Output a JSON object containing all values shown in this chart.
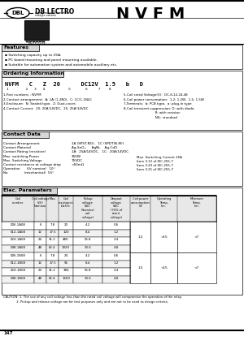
{
  "title": "N V F M",
  "logo_text": "DB LECTRO",
  "logo_sub1": "compact automotive",
  "logo_sub2": "relays series",
  "model_dims": "29x15.5x26",
  "features_title": "Features",
  "features": [
    "Switching capacity up to 25A.",
    "PC board mounting and panel mounting available.",
    "Suitable for automation system and automobile auxiliary etc."
  ],
  "ordering_title": "Ordering Information",
  "ordering_code_parts": [
    "NVFM",
    "C",
    "Z",
    "20",
    "DC12V",
    "1.5",
    "b",
    "D"
  ],
  "ordering_positions": [
    "1",
    "2",
    "3",
    "4",
    "5",
    "6",
    "7",
    "8"
  ],
  "ordering_notes_left": [
    "1-Part numbers : NVFM",
    "2-Contact arrangement:  A: 1A (1-2N0),  C: 1C(1-1N4);",
    "3-Enclosure:  N: Sealed type,  Z: Dust-cover;",
    "4-Contact Current:  20: 20A/14VDC,  25: 25A/14VDC"
  ],
  "ordering_notes_right": [
    "5-Coil rated Voltage(V):  DC-6,12,24,48",
    "6-Coil power consumption:  1.2: 1.2W,  1.5: 1.5W",
    "7-Terminals:  b: PCB type,  a: plug-in type",
    "8-Coil transient suppression: D: with diode,",
    "                               R: with resistor,",
    "                               NIL: standard"
  ],
  "contact_title": "Contact Data",
  "contact_rows": [
    [
      "Contact Arrangement",
      "1A (SPST-NO),   1C (SPDT(B-M))"
    ],
    [
      "Contact Material",
      "Ag-SnO₂,     AgNi,    Ag-CdO"
    ],
    [
      "Contact Rating (resistive)",
      "1A:  25A/14VDC,   1C:  20A/14VDC"
    ],
    [
      "Max. switching Power",
      "350W"
    ],
    [
      "Max. Switching Voltage",
      "75VDC"
    ],
    [
      "Contact resistance at voltage drop",
      "<50mΩ"
    ],
    [
      "Operation       6V nominal   10°",
      ""
    ],
    [
      "No                (mechanical)  55°",
      ""
    ]
  ],
  "contact_right": [
    "Max. Switching Current 25A",
    "Item 3.12 of IEC-255-7",
    "Item 3.20 of IEC-255-7",
    "Item 3.21 of IEC-255-7"
  ],
  "elec_title": "Elec. Parameters",
  "col_headers": [
    "Coil\nnumber",
    "Coil voltage\nV(V)\nNominal   Max.",
    "Coil\nresistance\nΩ±5%",
    "Pickup\nvoltage\nVDC\n(Nominal\ncoil voltage)",
    "Dropout\nvoltage\nVDC\n(70% of\nrated voltage)",
    "Coil power\nconsumption\nW",
    "Operating\nTemp.\nlim.",
    "Minimum\nTemp.\nlim."
  ],
  "table_data": [
    [
      "006-1A08",
      "6",
      "7.8",
      "20",
      "4.2",
      "0.6",
      "1.2",
      "<15",
      "<7"
    ],
    [
      "012-1A08",
      "12",
      "17.5",
      "120",
      "8.4",
      "1.2",
      "",
      "",
      ""
    ],
    [
      "024-1A08",
      "24",
      "31.2",
      "480",
      "56.8",
      "2.4",
      "",
      "",
      ""
    ],
    [
      "048-1A08",
      "48",
      "62.4",
      "1920",
      "33.6",
      "4.8",
      "",
      "",
      ""
    ],
    [
      "006-1B08",
      "6",
      "7.8",
      "24",
      "4.2",
      "0.6",
      "1.5",
      "<15",
      "<7"
    ],
    [
      "012-1B08",
      "12",
      "17.5",
      "96",
      "8.4",
      "1.2",
      "",
      "",
      ""
    ],
    [
      "024-1B08",
      "24",
      "31.2",
      "384",
      "56.8",
      "2.4",
      "",
      "",
      ""
    ],
    [
      "048-1B08",
      "48",
      "62.4",
      "1500",
      "33.6",
      "4.8",
      "",
      "",
      ""
    ]
  ],
  "caution1": "CAUTION: 1. The use of any coil voltage less than the rated coil voltage will compromise the operation of the relay.",
  "caution2": "             2. Pickup and release voltage are for test purposes only and are not to be used as design criteria.",
  "page_num": "147",
  "bg_color": "#ffffff"
}
